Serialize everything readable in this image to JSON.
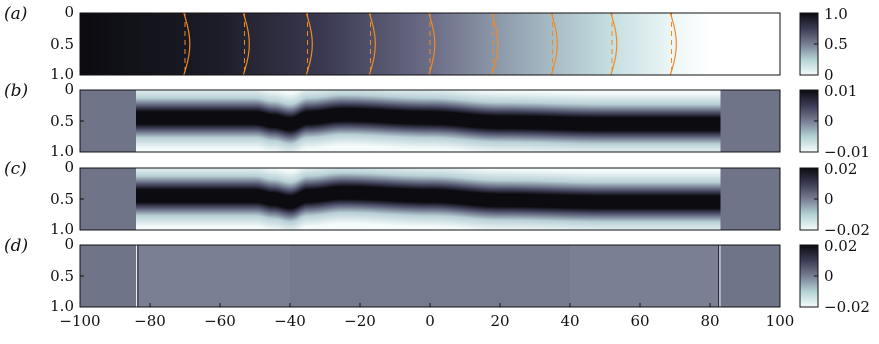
{
  "chart_data": [
    {
      "type": "heatmap",
      "panel_label": "(a)",
      "x_range": [
        -100,
        100
      ],
      "y_ticks": [
        "0",
        "0.5",
        "1.0"
      ],
      "colorbar_ticks": [
        "1.0",
        "0.5",
        "0"
      ],
      "colorbar_range": [
        0,
        1.0
      ],
      "field": "left-to-right gradient from 1.0 at x=-100 to 0 at x=100",
      "profile_line_color": "#f08a24",
      "profile_x_positions": [
        -70,
        -53,
        -35,
        -17,
        0,
        18,
        35,
        52,
        69
      ]
    },
    {
      "type": "heatmap",
      "panel_label": "(b)",
      "x_range": [
        -100,
        100
      ],
      "y_ticks": [
        "0",
        "0.5",
        "1.0"
      ],
      "colorbar_ticks": [
        "0.01",
        "0",
        "−0.01"
      ],
      "colorbar_range": [
        -0.01,
        0.01
      ],
      "active_x_range": [
        -84,
        83
      ],
      "band_center_y": [
        {
          "x": -84,
          "y": 0.45
        },
        {
          "x": -50,
          "y": 0.45
        },
        {
          "x": -45,
          "y": 0.5
        },
        {
          "x": -40,
          "y": 0.55
        },
        {
          "x": -35,
          "y": 0.45
        },
        {
          "x": -25,
          "y": 0.4
        },
        {
          "x": 0,
          "y": 0.45
        },
        {
          "x": 20,
          "y": 0.52
        },
        {
          "x": 50,
          "y": 0.55
        },
        {
          "x": 83,
          "y": 0.55
        }
      ]
    },
    {
      "type": "heatmap",
      "panel_label": "(c)",
      "x_range": [
        -100,
        100
      ],
      "y_ticks": [
        "0",
        "0.5",
        "1.0"
      ],
      "colorbar_ticks": [
        "0.02",
        "0",
        "−0.02"
      ],
      "colorbar_range": [
        -0.02,
        0.02
      ],
      "active_x_range": [
        -84,
        83
      ],
      "band_center_y": [
        {
          "x": -84,
          "y": 0.45
        },
        {
          "x": -50,
          "y": 0.45
        },
        {
          "x": -45,
          "y": 0.5
        },
        {
          "x": -40,
          "y": 0.55
        },
        {
          "x": -35,
          "y": 0.45
        },
        {
          "x": -25,
          "y": 0.4
        },
        {
          "x": 0,
          "y": 0.45
        },
        {
          "x": 20,
          "y": 0.52
        },
        {
          "x": 50,
          "y": 0.55
        },
        {
          "x": 83,
          "y": 0.55
        }
      ]
    },
    {
      "type": "heatmap",
      "panel_label": "(d)",
      "x_range": [
        -100,
        100
      ],
      "y_ticks": [
        "0",
        "0.5",
        "1.0"
      ],
      "colorbar_ticks": [
        "0.02",
        "0",
        "−0.02"
      ],
      "colorbar_range": [
        -0.02,
        0.02
      ],
      "active_x_range": [
        -84,
        83
      ],
      "field": "near-zero residual, faint streaks at x=-84 and x=83"
    }
  ],
  "x_axis": {
    "ticks": [
      "−100",
      "−80",
      "−60",
      "−40",
      "−20",
      "0",
      "20",
      "40",
      "60",
      "80",
      "100"
    ],
    "tick_values": [
      -100,
      -80,
      -60,
      -40,
      -20,
      0,
      20,
      40,
      60,
      80,
      100
    ]
  }
}
